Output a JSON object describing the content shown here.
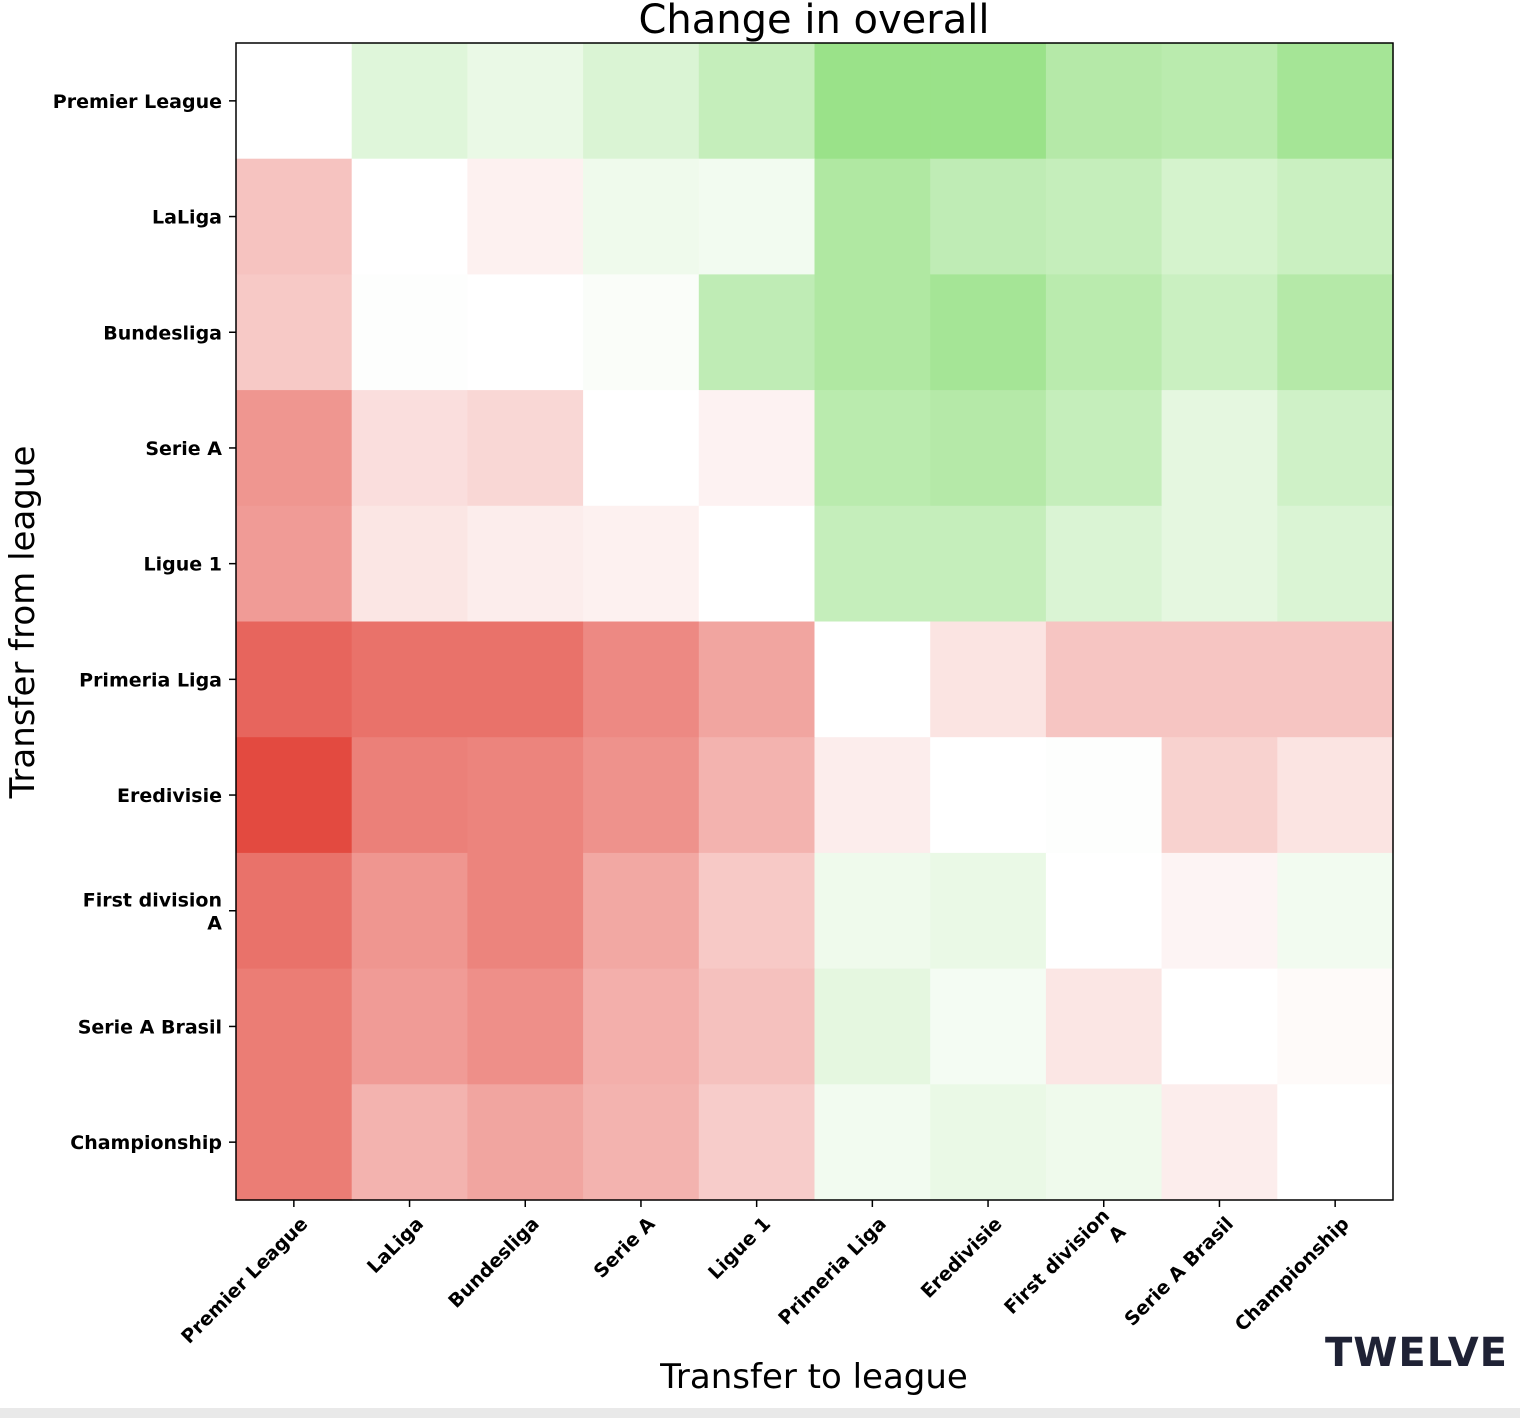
{
  "chart_data": {
    "type": "heatmap",
    "title": "Change in overall",
    "xlabel": "Transfer to league",
    "ylabel": "Transfer from league",
    "x_categories": [
      "Premier League",
      "LaLiga",
      "Bundesliga",
      "Serie A",
      "Ligue 1",
      "Primeria Liga",
      "Eredivisie",
      "First division A",
      "Serie A Brasil",
      "Championship"
    ],
    "y_categories": [
      "Premier League",
      "LaLiga",
      "Bundesliga",
      "Serie A",
      "Ligue 1",
      "Primeria Liga",
      "Eredivisie",
      "First division A",
      "Serie A Brasil",
      "Championship"
    ],
    "x_tick_labels": [
      [
        "Premier League"
      ],
      [
        "LaLiga"
      ],
      [
        "Bundesliga"
      ],
      [
        "Serie A"
      ],
      [
        "Ligue 1"
      ],
      [
        "Primeria Liga"
      ],
      [
        "Eredivisie"
      ],
      [
        "First division",
        "A"
      ],
      [
        "Serie A Brasil"
      ],
      [
        "Championship"
      ]
    ],
    "y_tick_labels": [
      [
        "Premier League"
      ],
      [
        "LaLiga"
      ],
      [
        "Bundesliga"
      ],
      [
        "Serie A"
      ],
      [
        "Ligue 1"
      ],
      [
        "Primeria Liga"
      ],
      [
        "Eredivisie"
      ],
      [
        "First division",
        "A"
      ],
      [
        "Serie A Brasil"
      ],
      [
        "Championship"
      ]
    ],
    "value_range": [
      -1,
      1
    ],
    "colors": {
      "negative": "#e34a40",
      "neutral": "#ffffff",
      "positive": "#95e083"
    },
    "values": [
      [
        0.0,
        0.3,
        0.2,
        0.35,
        0.55,
        0.95,
        0.95,
        0.7,
        0.65,
        0.85
      ],
      [
        -0.33,
        0.0,
        -0.08,
        0.15,
        0.12,
        0.75,
        0.6,
        0.55,
        0.4,
        0.5
      ],
      [
        -0.3,
        0.02,
        0.0,
        0.05,
        0.6,
        0.75,
        0.85,
        0.65,
        0.5,
        0.7
      ],
      [
        -0.58,
        -0.18,
        -0.22,
        0.0,
        -0.07,
        0.65,
        0.7,
        0.55,
        0.25,
        0.45
      ],
      [
        -0.55,
        -0.14,
        -0.1,
        -0.08,
        0.0,
        0.55,
        0.55,
        0.35,
        0.25,
        0.35
      ],
      [
        -0.85,
        -0.78,
        -0.78,
        -0.65,
        -0.5,
        0.0,
        -0.15,
        -0.32,
        -0.32,
        -0.32
      ],
      [
        -1.0,
        -0.7,
        -0.68,
        -0.6,
        -0.42,
        -0.1,
        0.0,
        0.02,
        -0.25,
        -0.15
      ],
      [
        -0.78,
        -0.58,
        -0.68,
        -0.48,
        -0.3,
        0.15,
        0.2,
        0.0,
        -0.06,
        0.12
      ],
      [
        -0.72,
        -0.55,
        -0.62,
        -0.44,
        -0.34,
        0.25,
        0.1,
        -0.14,
        0.0,
        -0.03
      ],
      [
        -0.72,
        -0.42,
        -0.5,
        -0.42,
        -0.28,
        0.12,
        0.2,
        0.15,
        -0.1,
        0.0
      ]
    ]
  },
  "branding": {
    "logo_text": "TWELVE"
  }
}
